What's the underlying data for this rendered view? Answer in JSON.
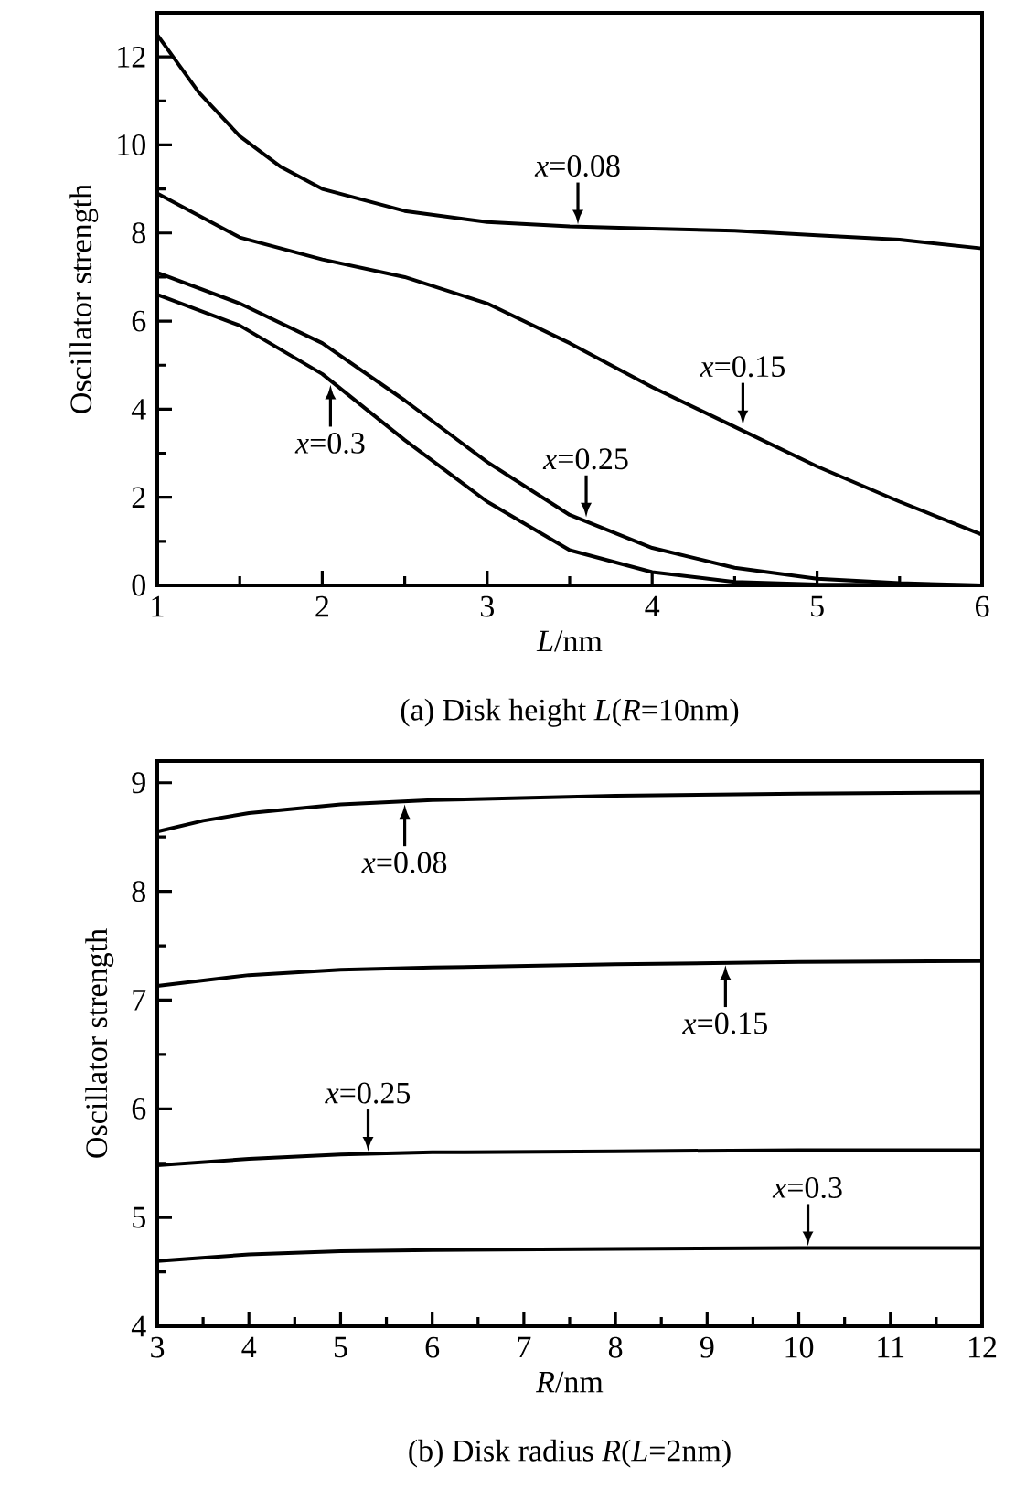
{
  "chart_data": [
    {
      "type": "line",
      "title": "(a) Disk height *L*(*R*=10nm)",
      "xlabel": "*L*/nm",
      "ylabel": "Oscillator strength",
      "xlim": [
        1,
        6
      ],
      "ylim": [
        0,
        13
      ],
      "xticks": [
        1,
        2,
        3,
        4,
        5,
        6
      ],
      "yticks": [
        0,
        2,
        4,
        6,
        8,
        10,
        12
      ],
      "line_style": "solid",
      "series": [
        {
          "color": "#000000",
          "x": [
            1,
            1.25,
            1.5,
            1.75,
            2,
            2.5,
            3,
            3.5,
            4,
            4.5,
            5,
            5.5,
            6
          ],
          "values": [
            12.5,
            11.2,
            10.2,
            9.5,
            9.0,
            8.5,
            8.25,
            8.15,
            8.1,
            8.05,
            7.95,
            7.85,
            7.65
          ]
        },
        {
          "color": "#000000",
          "x": [
            1,
            1.5,
            2,
            2.5,
            3,
            3.5,
            4,
            4.5,
            5,
            5.5,
            6
          ],
          "values": [
            8.9,
            7.9,
            7.4,
            7.0,
            6.4,
            5.5,
            4.5,
            3.6,
            2.7,
            1.9,
            1.15
          ]
        },
        {
          "color": "#000000",
          "x": [
            1,
            1.5,
            2,
            2.5,
            3,
            3.5,
            4,
            4.5,
            5,
            5.5,
            6
          ],
          "values": [
            7.1,
            6.4,
            5.5,
            4.2,
            2.8,
            1.6,
            0.85,
            0.4,
            0.15,
            0.05,
            0.0
          ]
        },
        {
          "color": "#000000",
          "x": [
            1,
            1.5,
            2,
            2.5,
            3,
            3.5,
            4,
            4.5,
            5,
            6
          ],
          "values": [
            6.6,
            5.9,
            4.8,
            3.3,
            1.9,
            0.8,
            0.3,
            0.08,
            0.02,
            0.0
          ]
        }
      ],
      "annotations": [
        {
          "text": "*x*=0.08",
          "x": 3.55,
          "y": 8.15
        },
        {
          "text": "*x*=0.15",
          "x": 4.55,
          "y": 3.6
        },
        {
          "text": "*x*=0.25",
          "x": 3.6,
          "y": 1.5
        },
        {
          "text": "*x*=0.3",
          "x": 2.05,
          "y": 4.6
        }
      ]
    },
    {
      "type": "line",
      "title": "(b) Disk radius *R*(*L*=2nm)",
      "xlabel": "*R*/nm",
      "ylabel": "Oscillator strength",
      "xlim": [
        3,
        12
      ],
      "ylim": [
        4,
        9.2
      ],
      "xticks": [
        3,
        4,
        5,
        6,
        7,
        8,
        9,
        10,
        11,
        12
      ],
      "yticks": [
        4,
        5,
        6,
        7,
        8,
        9
      ],
      "line_style": "solid",
      "series": [
        {
          "color": "#000000",
          "x": [
            3,
            3.5,
            4,
            5,
            6,
            8,
            10,
            12
          ],
          "values": [
            8.55,
            8.65,
            8.72,
            8.8,
            8.84,
            8.88,
            8.9,
            8.91
          ]
        },
        {
          "color": "#000000",
          "x": [
            3,
            4,
            5,
            6,
            8,
            10,
            12
          ],
          "values": [
            7.13,
            7.23,
            7.28,
            7.3,
            7.33,
            7.35,
            7.36
          ]
        },
        {
          "color": "#000000",
          "x": [
            3,
            4,
            5,
            6,
            8,
            10,
            12
          ],
          "values": [
            5.48,
            5.54,
            5.58,
            5.6,
            5.61,
            5.62,
            5.62
          ]
        },
        {
          "color": "#000000",
          "x": [
            3,
            4,
            5,
            6,
            8,
            10,
            12
          ],
          "values": [
            4.6,
            4.66,
            4.69,
            4.7,
            4.71,
            4.72,
            4.72
          ]
        }
      ],
      "annotations": [
        {
          "text": "*x*=0.08",
          "x": 5.7,
          "y": 8.82
        },
        {
          "text": "*x*=0.15",
          "x": 9.2,
          "y": 7.34
        },
        {
          "text": "*x*=0.25",
          "x": 5.3,
          "y": 5.59
        },
        {
          "text": "*x*=0.3",
          "x": 10.1,
          "y": 4.72
        }
      ]
    }
  ]
}
